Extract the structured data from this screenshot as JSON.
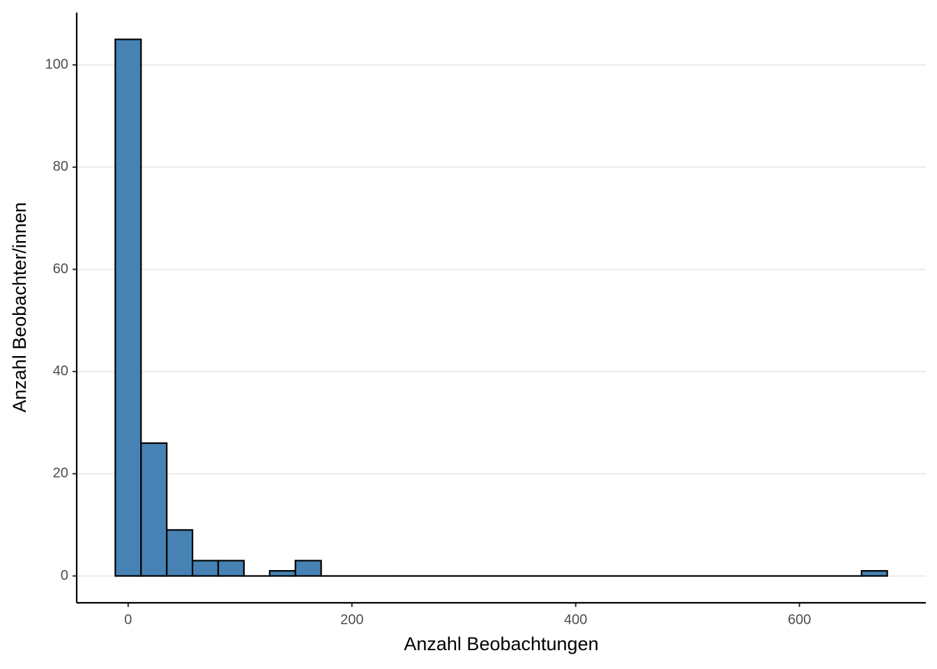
{
  "chart_data": {
    "type": "histogram",
    "x_label": "Anzahl Beobachtungen",
    "y_label": "Anzahl Beobachter/innen",
    "bins": [
      -11.5,
      11.5,
      34.5,
      57.5,
      80.5,
      103.5,
      126.5,
      149.5,
      172.5,
      195.5,
      218.5,
      241.5,
      264.5,
      287.5,
      310.5,
      333.5,
      356.5,
      379.5,
      402.5,
      425.5,
      448.5,
      471.5,
      494.5,
      517.5,
      540.5,
      563.5,
      586.5,
      609.5,
      632.5,
      655.5,
      678.5
    ],
    "values": [
      105,
      26,
      9,
      3,
      3,
      0,
      1,
      3,
      0,
      0,
      0,
      0,
      0,
      0,
      0,
      0,
      0,
      0,
      0,
      0,
      0,
      0,
      0,
      0,
      0,
      0,
      0,
      0,
      0,
      1
    ],
    "color": "#4682b4",
    "xlim": [
      -46,
      713
    ],
    "ylim": [
      -5.25,
      110.25
    ],
    "xticks": [
      0,
      200,
      400,
      600
    ],
    "yticks": [
      0,
      20,
      40,
      60,
      80,
      100
    ],
    "grid": true
  }
}
